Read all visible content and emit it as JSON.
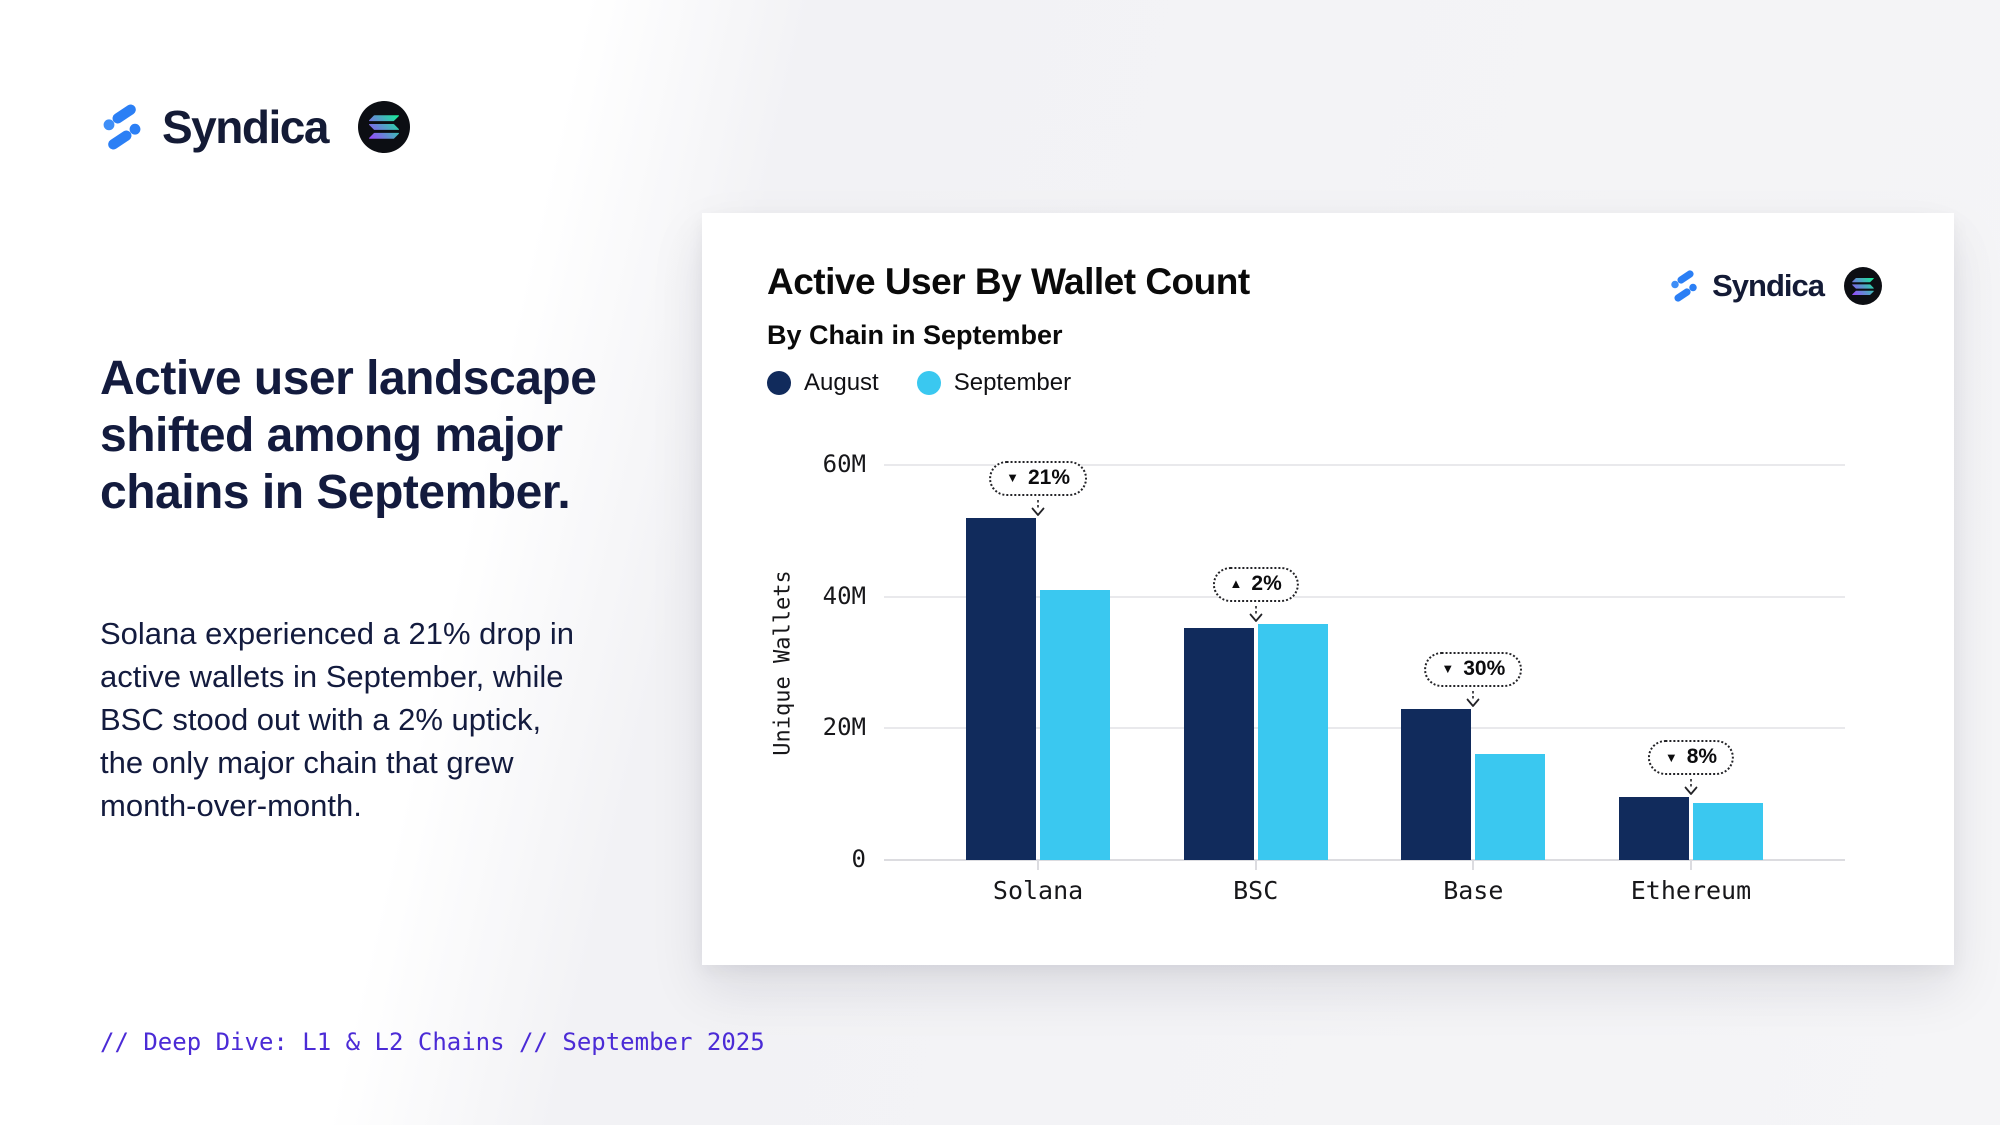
{
  "brand": {
    "name": "Syndica",
    "logo_blue": "#2b7ff5",
    "wordmark_color": "#141b36",
    "solana_gradient": [
      "#9945FF",
      "#14F195"
    ]
  },
  "left_column": {
    "heading": "Active user landscape shifted among major chains in September.",
    "body": "Solana experienced a 21% drop in active wallets in September, while BSC stood out with a 2% uptick, the only major chain that grew month-over-month.",
    "footer": "// Deep Dive: L1 & L2 Chains // September 2025",
    "footer_color": "#4b2bd6",
    "text_color": "#131b3e"
  },
  "card": {
    "title": "Active User By Wallet Count",
    "subtitle": "By Chain in September",
    "legend": [
      {
        "label": "August",
        "color": "#112b5c"
      },
      {
        "label": "September",
        "color": "#3ac8f0"
      }
    ]
  },
  "chart_data": {
    "type": "bar",
    "title": "Active User By Wallet Count",
    "subtitle": "By Chain in September",
    "categories": [
      "Solana",
      "BSC",
      "Base",
      "Ethereum"
    ],
    "series": [
      {
        "name": "August",
        "color": "#112b5c",
        "values": [
          52,
          35.2,
          23,
          9.5
        ]
      },
      {
        "name": "September",
        "color": "#3ac8f0",
        "values": [
          41,
          35.9,
          16.1,
          8.7
        ]
      }
    ],
    "annotations": [
      {
        "category": "Solana",
        "direction": "down",
        "glyph": "▼",
        "label": "21%"
      },
      {
        "category": "BSC",
        "direction": "up",
        "glyph": "▲",
        "label": "2%"
      },
      {
        "category": "Base",
        "direction": "down",
        "glyph": "▼",
        "label": "30%"
      },
      {
        "category": "Ethereum",
        "direction": "down",
        "glyph": "▼",
        "label": "8%"
      }
    ],
    "ylabel": "Unique Wallets",
    "xlabel": "",
    "yticks": [
      "60M",
      "40M",
      "20M",
      "0"
    ],
    "ytick_values": [
      60,
      40,
      20,
      0
    ],
    "ylim": [
      0,
      60
    ],
    "grid": true,
    "legend_position": "top-left"
  }
}
